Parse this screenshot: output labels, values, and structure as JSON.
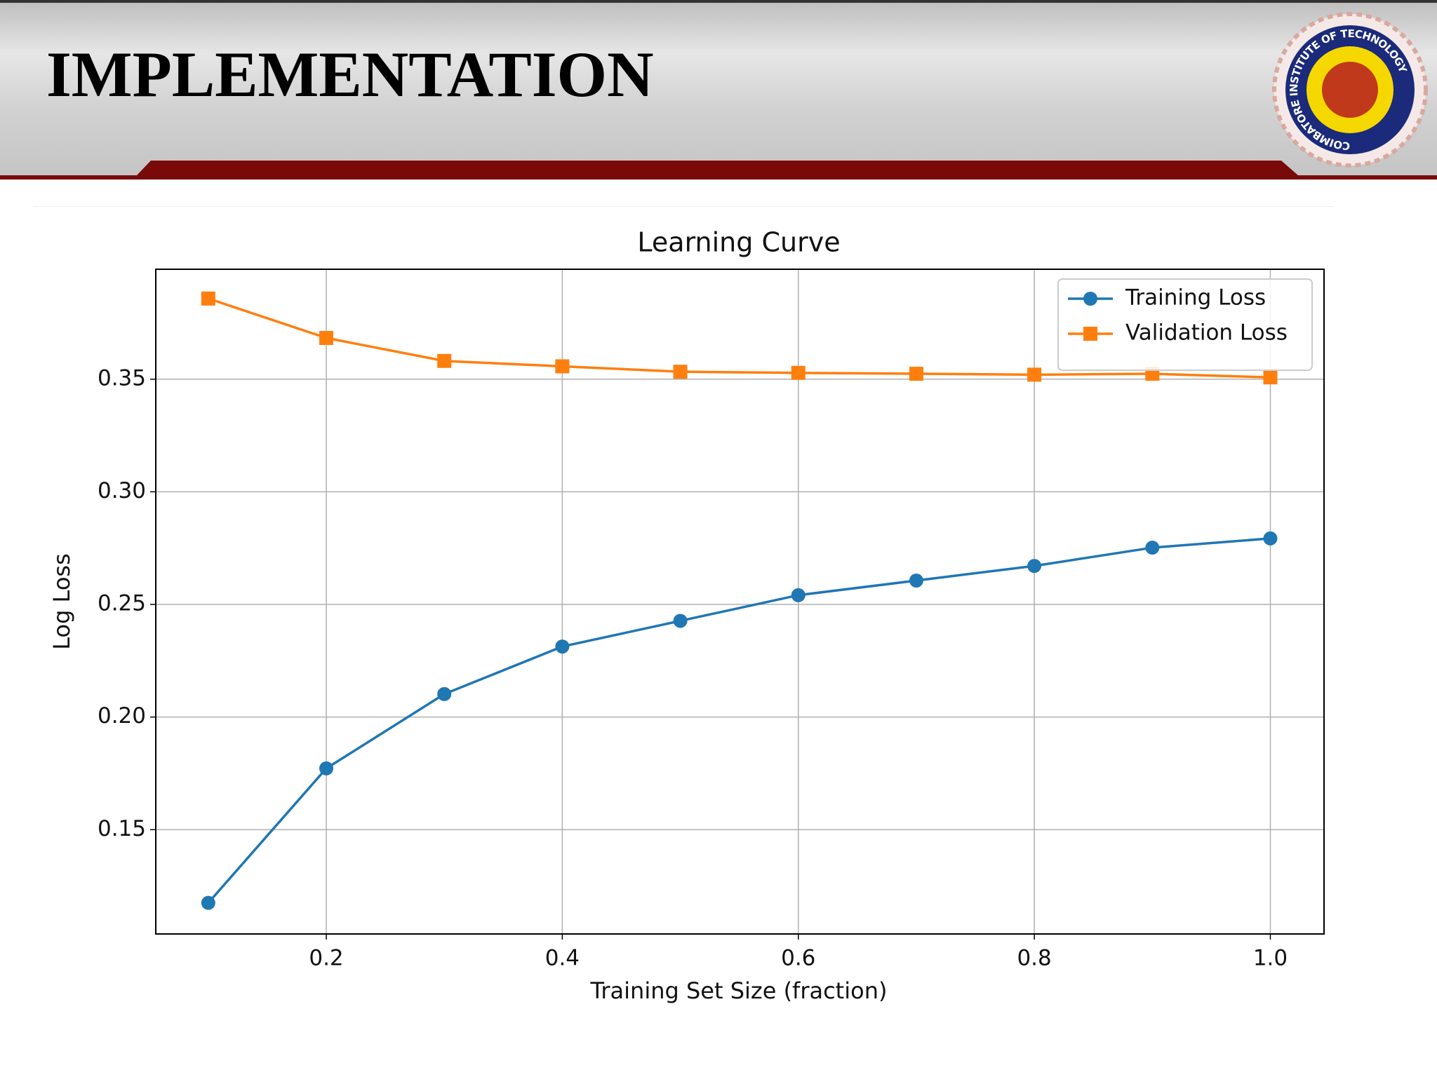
{
  "header": {
    "title": "IMPLEMENTATION",
    "logo_text": "COIMBATORE INSTITUTE OF TECHNOLOGY"
  },
  "chart_data": {
    "type": "line",
    "title": "Learning Curve",
    "x_label": "Training Set Size (fraction)",
    "y_label": "Log Loss",
    "x": [
      0.1,
      0.2,
      0.3,
      0.4,
      0.5,
      0.6,
      0.7,
      0.8,
      0.9,
      1.0
    ],
    "series": [
      {
        "name": "Training Loss",
        "color": "#1f77b4",
        "marker": "circle",
        "values": [
          0.1175,
          0.1772,
          0.2102,
          0.2313,
          0.2427,
          0.2541,
          0.2606,
          0.2671,
          0.2752,
          0.2793
        ]
      },
      {
        "name": "Validation Loss",
        "color": "#ff7f0e",
        "marker": "square",
        "values": [
          0.3858,
          0.3683,
          0.3581,
          0.3557,
          0.3533,
          0.3528,
          0.3524,
          0.352,
          0.3524,
          0.3508
        ]
      }
    ],
    "xlim": [
      0.0555,
      1.0455
    ],
    "xticks": [
      0.2,
      0.4,
      0.6,
      0.8,
      {
        "value": 1.0,
        "label": "1.0"
      }
    ],
    "ylim": [
      0.1037,
      0.3988
    ],
    "yticks": [
      0.15,
      {
        "value": 0.2,
        "label": "0.20"
      },
      0.25,
      {
        "value": 0.3,
        "label": "0.30"
      },
      0.35
    ],
    "grid": true,
    "legend": "upper right"
  }
}
